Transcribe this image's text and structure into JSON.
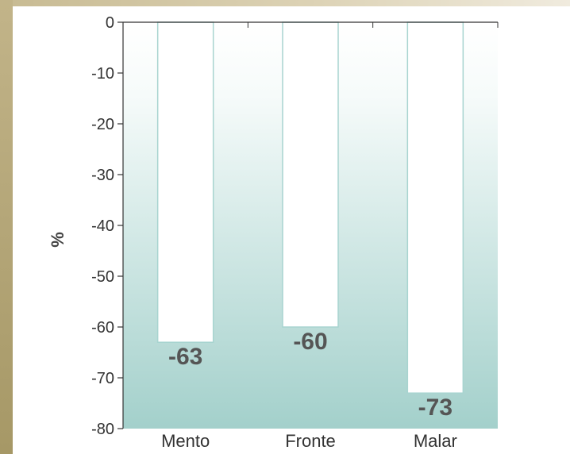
{
  "chart_data": {
    "type": "bar",
    "categories": [
      "Mento",
      "Fronte",
      "Malar"
    ],
    "values": [
      -63,
      -60,
      -73
    ],
    "value_labels": [
      "-63",
      "-60",
      "-73"
    ],
    "title": "",
    "xlabel": "",
    "ylabel": "%",
    "ylim": [
      -80,
      0
    ],
    "yticks": [
      0,
      -10,
      -20,
      -30,
      -40,
      -50,
      -60,
      -70,
      -80
    ],
    "ytick_labels": [
      "0",
      "-10",
      "-20",
      "-30",
      "-40",
      "-50",
      "-60",
      "-70",
      "-80"
    ],
    "grid": false,
    "legend": "none",
    "colors": {
      "bar_fill": "#ffffff",
      "bar_edge": "#a8d4d0",
      "plot_bg_top": "#ffffff",
      "plot_bg_bottom": "#a3d0cb",
      "axis": "#333333"
    }
  }
}
